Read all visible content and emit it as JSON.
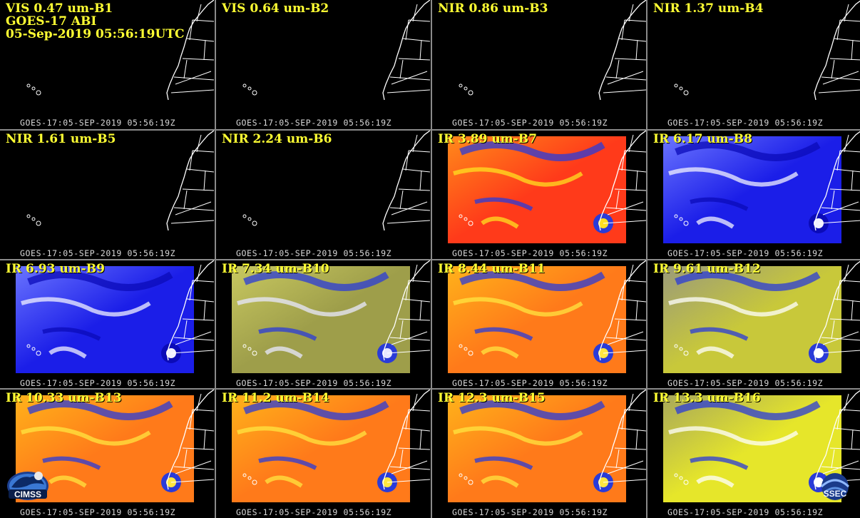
{
  "header": {
    "satellite": "GOES-17 ABI",
    "datetime": "05-Sep-2019 05:56:19UTC"
  },
  "timestamp": "GOES-17:05-SEP-2019 05:56:19Z",
  "panels": [
    {
      "label": "VIS 0.47 um-B1",
      "style": "dark"
    },
    {
      "label": "VIS 0.64 um-B2",
      "style": "dark"
    },
    {
      "label": "NIR 0.86 um-B3",
      "style": "dark"
    },
    {
      "label": "NIR 1.37 um-B4",
      "style": "dark"
    },
    {
      "label": "NIR 1.61 um-B5",
      "style": "dark"
    },
    {
      "label": "NIR 2.24 um-B6",
      "style": "dark"
    },
    {
      "label": "IR 3.89 um-B7",
      "style": "ir-red"
    },
    {
      "label": "IR 6.17 um-B8",
      "style": "wv-blue"
    },
    {
      "label": "IR 6.93 um-B9",
      "style": "wv-blue"
    },
    {
      "label": "IR 7.34 um-B10",
      "style": "wv-olive"
    },
    {
      "label": "IR 8.44 um-B11",
      "style": "ir-orange"
    },
    {
      "label": "IR 9.61 um-B12",
      "style": "ozone"
    },
    {
      "label": "IR 10.33 um-B13",
      "style": "ir-orange"
    },
    {
      "label": "IR 11.2 um-B14",
      "style": "ir-orange"
    },
    {
      "label": "IR 12.3 um-B15",
      "style": "ir-orange"
    },
    {
      "label": "IR 13.3 um-B16",
      "style": "ir-yellow"
    }
  ],
  "logos": {
    "left": "CIMSS",
    "right": "SSEC"
  },
  "colors": {
    "label": "#ffff33",
    "stamp": "#d8d8d8",
    "divider": "#8a8a8a"
  }
}
